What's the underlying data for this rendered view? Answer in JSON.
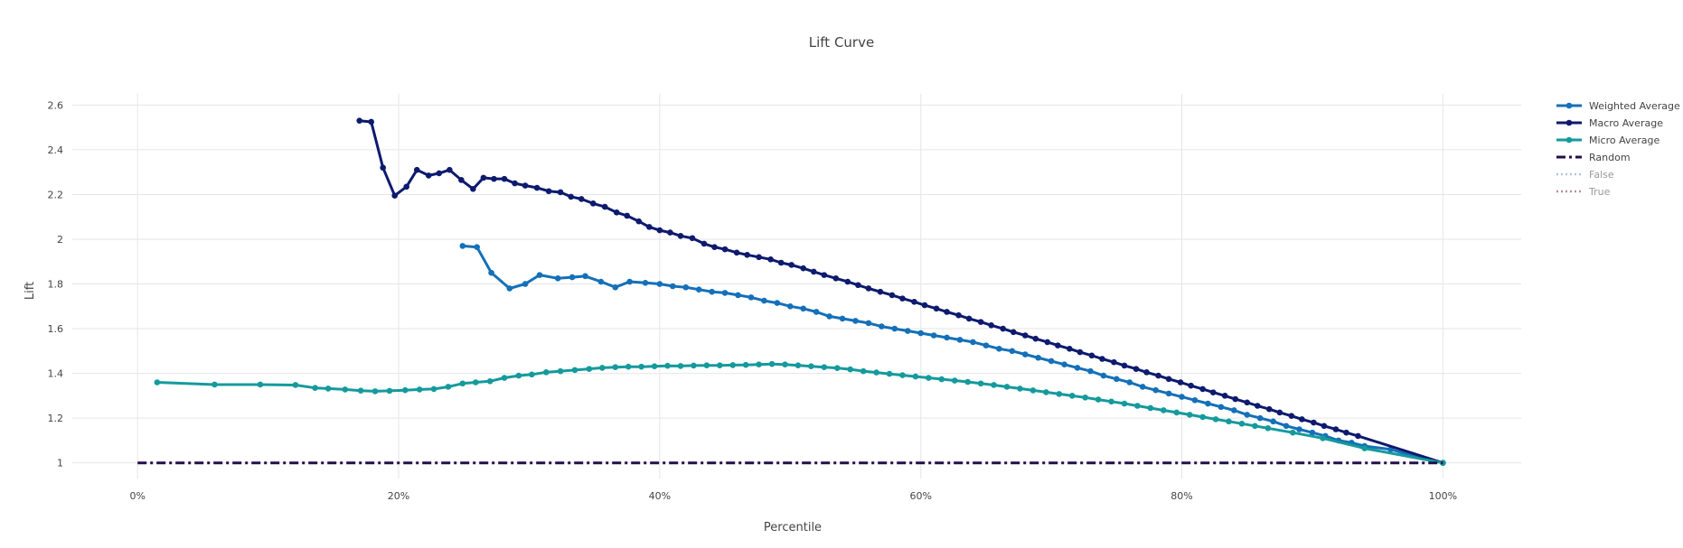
{
  "chart_data": {
    "type": "line",
    "title": "Lift Curve",
    "xlabel": "Percentile",
    "ylabel": "Lift",
    "xlim": [
      -5,
      106
    ],
    "ylim": [
      0.93,
      2.65
    ],
    "xticks": [
      0,
      20,
      40,
      60,
      80,
      100
    ],
    "xtick_labels": [
      "0%",
      "20%",
      "40%",
      "60%",
      "80%",
      "100%"
    ],
    "yticks": [
      1,
      1.2,
      1.4,
      1.6,
      1.8,
      2,
      2.2,
      2.4,
      2.6
    ],
    "ytick_labels": [
      "1",
      "1.2",
      "1.4",
      "1.6",
      "1.8",
      "2",
      "2.2",
      "2.4",
      "2.6"
    ],
    "grid": true,
    "legend_position": "right",
    "series": [
      {
        "name": "Weighted Average",
        "color": "#1470b8",
        "style": "lines+markers",
        "x": [
          24.9,
          26.0,
          27.1,
          28.5,
          29.7,
          30.8,
          32.2,
          33.3,
          34.3,
          35.5,
          36.6,
          37.7,
          38.9,
          40.0,
          41.0,
          42.0,
          43.0,
          44.0,
          45.0,
          46.0,
          47.0,
          48.0,
          49.0,
          50.0,
          51.0,
          52.0,
          53.0,
          54.0,
          55.0,
          56.0,
          57.0,
          58.0,
          59.0,
          60.0,
          61.0,
          62.0,
          63.0,
          64.0,
          65.0,
          66.0,
          67.0,
          68.0,
          69.0,
          70.0,
          71.0,
          72.0,
          73.0,
          74.0,
          75.0,
          76.0,
          77.0,
          78.0,
          79.0,
          80.0,
          81.0,
          82.0,
          83.0,
          84.0,
          85.0,
          86.0,
          87.0,
          88.0,
          89.0,
          90.0,
          91.0,
          92.0,
          93.0,
          94.0,
          96.0,
          97.5,
          100.0
        ],
        "y": [
          1.97,
          1.965,
          1.85,
          1.78,
          1.8,
          1.84,
          1.825,
          1.83,
          1.835,
          1.81,
          1.785,
          1.81,
          1.805,
          1.8,
          1.79,
          1.785,
          1.775,
          1.765,
          1.76,
          1.75,
          1.74,
          1.725,
          1.715,
          1.7,
          1.69,
          1.675,
          1.655,
          1.645,
          1.635,
          1.625,
          1.61,
          1.6,
          1.59,
          1.58,
          1.57,
          1.56,
          1.55,
          1.54,
          1.525,
          1.51,
          1.5,
          1.485,
          1.47,
          1.455,
          1.44,
          1.425,
          1.41,
          1.39,
          1.375,
          1.36,
          1.34,
          1.325,
          1.31,
          1.295,
          1.28,
          1.265,
          1.25,
          1.235,
          1.215,
          1.2,
          1.185,
          1.165,
          1.15,
          1.135,
          1.12,
          1.1,
          1.09,
          1.075,
          1.06,
          1.035,
          1.0
        ]
      },
      {
        "name": "Macro Average",
        "color": "#0d1a6e",
        "style": "lines+markers",
        "x": [
          17.0,
          17.9,
          18.8,
          19.7,
          20.6,
          21.4,
          22.3,
          23.1,
          23.9,
          24.8,
          25.7,
          26.5,
          27.3,
          28.1,
          28.9,
          29.7,
          30.6,
          31.5,
          32.4,
          33.2,
          34.0,
          34.9,
          35.8,
          36.7,
          37.5,
          38.4,
          39.2,
          40.0,
          40.8,
          41.6,
          42.5,
          43.4,
          44.2,
          45.0,
          45.9,
          46.7,
          47.6,
          48.5,
          49.3,
          50.1,
          51.0,
          51.8,
          52.6,
          53.5,
          54.4,
          55.2,
          56.0,
          56.9,
          57.8,
          58.6,
          59.5,
          60.3,
          61.2,
          62.0,
          62.9,
          63.7,
          64.6,
          65.4,
          66.3,
          67.1,
          68.0,
          68.8,
          69.7,
          70.5,
          71.4,
          72.2,
          73.1,
          73.9,
          74.8,
          75.6,
          76.5,
          77.3,
          78.2,
          79.0,
          79.9,
          80.7,
          81.6,
          82.4,
          83.3,
          84.1,
          85.0,
          85.8,
          86.7,
          87.5,
          88.4,
          89.2,
          90.1,
          90.9,
          91.8,
          92.6,
          93.5,
          100.0
        ],
        "y": [
          2.53,
          2.525,
          2.32,
          2.195,
          2.235,
          2.31,
          2.285,
          2.295,
          2.31,
          2.265,
          2.225,
          2.275,
          2.27,
          2.27,
          2.25,
          2.24,
          2.23,
          2.215,
          2.21,
          2.19,
          2.18,
          2.16,
          2.145,
          2.12,
          2.105,
          2.08,
          2.055,
          2.04,
          2.03,
          2.015,
          2.005,
          1.98,
          1.965,
          1.955,
          1.94,
          1.93,
          1.92,
          1.91,
          1.895,
          1.885,
          1.87,
          1.855,
          1.84,
          1.825,
          1.81,
          1.795,
          1.78,
          1.765,
          1.75,
          1.735,
          1.72,
          1.705,
          1.69,
          1.675,
          1.66,
          1.645,
          1.63,
          1.615,
          1.6,
          1.585,
          1.57,
          1.555,
          1.54,
          1.525,
          1.51,
          1.495,
          1.48,
          1.465,
          1.45,
          1.435,
          1.42,
          1.405,
          1.39,
          1.375,
          1.36,
          1.345,
          1.33,
          1.315,
          1.3,
          1.285,
          1.27,
          1.255,
          1.24,
          1.225,
          1.21,
          1.195,
          1.18,
          1.165,
          1.15,
          1.135,
          1.12,
          1.0
        ]
      },
      {
        "name": "Micro Average",
        "color": "#159a9c",
        "style": "lines+markers",
        "x": [
          1.5,
          5.9,
          9.4,
          12.1,
          13.6,
          14.6,
          15.9,
          17.1,
          18.2,
          19.3,
          20.5,
          21.6,
          22.7,
          23.8,
          24.9,
          25.9,
          27.0,
          28.1,
          29.2,
          30.2,
          31.3,
          32.4,
          33.5,
          34.6,
          35.6,
          36.6,
          37.6,
          38.6,
          39.6,
          40.6,
          41.6,
          42.6,
          43.6,
          44.6,
          45.6,
          46.6,
          47.6,
          48.6,
          49.6,
          50.6,
          51.6,
          52.6,
          53.6,
          54.6,
          55.6,
          56.6,
          57.6,
          58.6,
          59.6,
          60.6,
          61.6,
          62.6,
          63.6,
          64.6,
          65.6,
          66.6,
          67.6,
          68.6,
          69.6,
          70.6,
          71.6,
          72.6,
          73.6,
          74.6,
          75.6,
          76.6,
          77.6,
          78.6,
          79.6,
          80.6,
          81.6,
          82.6,
          83.6,
          84.6,
          85.6,
          86.6,
          88.5,
          90.8,
          94.0,
          100.0
        ],
        "y": [
          1.36,
          1.35,
          1.35,
          1.348,
          1.335,
          1.332,
          1.328,
          1.323,
          1.32,
          1.322,
          1.325,
          1.328,
          1.33,
          1.34,
          1.355,
          1.36,
          1.365,
          1.38,
          1.39,
          1.395,
          1.405,
          1.41,
          1.415,
          1.42,
          1.425,
          1.428,
          1.43,
          1.43,
          1.432,
          1.434,
          1.433,
          1.435,
          1.436,
          1.436,
          1.437,
          1.438,
          1.44,
          1.442,
          1.44,
          1.436,
          1.432,
          1.428,
          1.424,
          1.418,
          1.41,
          1.404,
          1.398,
          1.392,
          1.386,
          1.38,
          1.374,
          1.368,
          1.362,
          1.355,
          1.348,
          1.34,
          1.332,
          1.324,
          1.316,
          1.308,
          1.3,
          1.292,
          1.283,
          1.274,
          1.265,
          1.255,
          1.245,
          1.235,
          1.225,
          1.215,
          1.205,
          1.195,
          1.185,
          1.175,
          1.165,
          1.155,
          1.135,
          1.11,
          1.065,
          1.0
        ]
      },
      {
        "name": "Random",
        "color": "#230f4a",
        "style": "dashdot",
        "x": [
          0,
          100
        ],
        "y": [
          1,
          1
        ]
      },
      {
        "name": "False",
        "color": "#a9b3dd",
        "style": "dotted",
        "legendonly": true,
        "x": [],
        "y": []
      },
      {
        "name": "True",
        "color": "#b0708a",
        "style": "dotted",
        "legendonly": true,
        "x": [],
        "y": []
      }
    ]
  }
}
